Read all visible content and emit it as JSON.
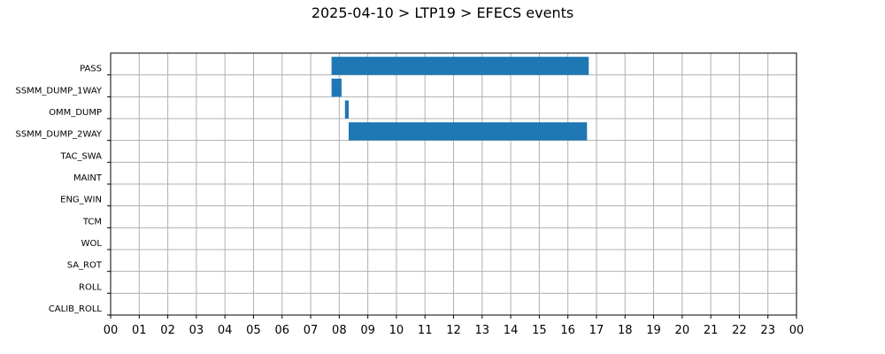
{
  "chart_data": {
    "type": "gantt",
    "title": "2025-04-10 > LTP19 > EFECS events",
    "xlabel": "",
    "ylabel": "",
    "x_unit": "hour of day",
    "xlim": [
      0,
      24
    ],
    "x_ticks": [
      "00",
      "01",
      "02",
      "03",
      "04",
      "05",
      "06",
      "07",
      "08",
      "09",
      "10",
      "11",
      "12",
      "13",
      "14",
      "15",
      "16",
      "17",
      "18",
      "19",
      "20",
      "21",
      "22",
      "23",
      "00"
    ],
    "categories": [
      "PASS",
      "SSMM_DUMP_1WAY",
      "OMM_DUMP",
      "SSMM_DUMP_2WAY",
      "TAC_SWA",
      "MAINT",
      "ENG_WIN",
      "TCM",
      "WOL",
      "SA_ROT",
      "ROLL",
      "CALIB_ROLL"
    ],
    "events": [
      {
        "category": "PASS",
        "start": 7.73,
        "end": 16.73
      },
      {
        "category": "SSMM_DUMP_1WAY",
        "start": 7.73,
        "end": 8.08
      },
      {
        "category": "OMM_DUMP",
        "start": 8.2,
        "end": 8.33
      },
      {
        "category": "SSMM_DUMP_2WAY",
        "start": 8.33,
        "end": 16.67
      }
    ],
    "grid": true,
    "legend": "none",
    "colors": {
      "bar": "#1f77b4",
      "grid": "#b0b0b0",
      "axes": "#000000"
    }
  }
}
